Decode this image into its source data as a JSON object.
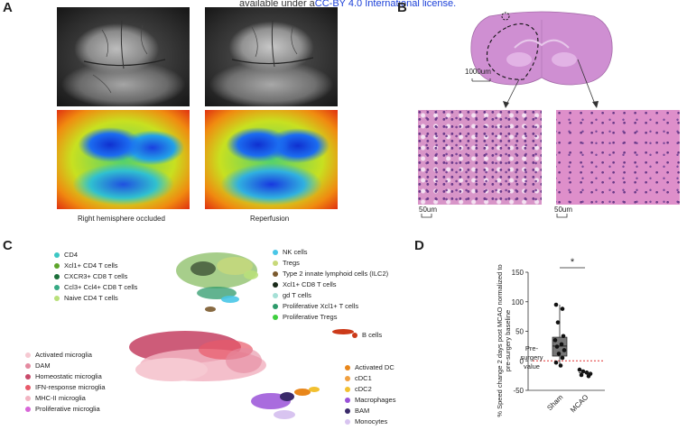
{
  "header": {
    "prefix": "available under a",
    "license": "CC-BY 4.0 International license."
  },
  "panels": {
    "A": "A",
    "B": "B",
    "C": "C",
    "D": "D"
  },
  "panelA": {
    "caption_left": "Right hemisphere occluded",
    "caption_right": "Reperfusion"
  },
  "panelB": {
    "scale_top": "1000um",
    "scale_left": "50um",
    "scale_right": "50um"
  },
  "panelC": {
    "tcells": [
      {
        "label": "CD4",
        "color": "#3cc7c4"
      },
      {
        "label": "Xcl1+ CD4 T cells",
        "color": "#5ea52b"
      },
      {
        "label": "CXCR3+ CD8 T cells",
        "color": "#1b6f3a"
      },
      {
        "label": "Ccl3+ Ccl4+ CD8 T cells",
        "color": "#36a984"
      },
      {
        "label": "Naive CD4 T cells",
        "color": "#b9e07a"
      }
    ],
    "others": [
      {
        "label": "NK cells",
        "color": "#49c6e7"
      },
      {
        "label": "Tregs",
        "color": "#c8d97a"
      },
      {
        "label": "Type 2 innate lymphoid cells (ILC2)",
        "color": "#7b5a2e"
      },
      {
        "label": "Xcl1+ CD8 T cells",
        "color": "#1a2a1a"
      },
      {
        "label": "gd T cells",
        "color": "#a5e0d6"
      },
      {
        "label": "Proliferative Xcl1+ T cells",
        "color": "#2d9a6b"
      },
      {
        "label": "Proliferative Tregs",
        "color": "#3fcf3f"
      }
    ],
    "bcells": {
      "label": "B cells",
      "color": "#cc3a1a"
    },
    "microglia": [
      {
        "label": "Activated microglia",
        "color": "#f6c9d2"
      },
      {
        "label": "DAM",
        "color": "#e48aa0"
      },
      {
        "label": "Homeostatic microglia",
        "color": "#c84a6a"
      },
      {
        "label": "IFN-response microglia",
        "color": "#e85a6a"
      },
      {
        "label": "MHC-II microglia",
        "color": "#f2b4c2"
      },
      {
        "label": "Proliferative microglia",
        "color": "#d866d8"
      }
    ],
    "myeloid": [
      {
        "label": "Activated DC",
        "color": "#e8861a"
      },
      {
        "label": "cDC1",
        "color": "#f0a040"
      },
      {
        "label": "cDC2",
        "color": "#f2c030"
      },
      {
        "label": "Macrophages",
        "color": "#9a52d8"
      },
      {
        "label": "BAM",
        "color": "#3a2a6a"
      },
      {
        "label": "Monocytes",
        "color": "#d8c4f0"
      }
    ]
  },
  "chart_data": {
    "type": "box",
    "ylabel": "% Speed change 2 days post MCAO normalized to pre-surgery baseline",
    "ylim": [
      -50,
      150
    ],
    "yticks": [
      150,
      100,
      50,
      0,
      -50
    ],
    "categories": [
      "Sham",
      "MCAO"
    ],
    "significance": "*",
    "reference_label": "Pre-surgery value",
    "series": [
      {
        "name": "Sham",
        "box": {
          "q1": 8,
          "median": 25,
          "q3": 40,
          "min": -8,
          "max": 95
        },
        "points": [
          95,
          88,
          65,
          42,
          35,
          28,
          24,
          18,
          12,
          5,
          -3,
          -8
        ]
      },
      {
        "name": "MCAO",
        "points": [
          -15,
          -18,
          -20,
          -22,
          -24,
          -26
        ]
      }
    ]
  }
}
